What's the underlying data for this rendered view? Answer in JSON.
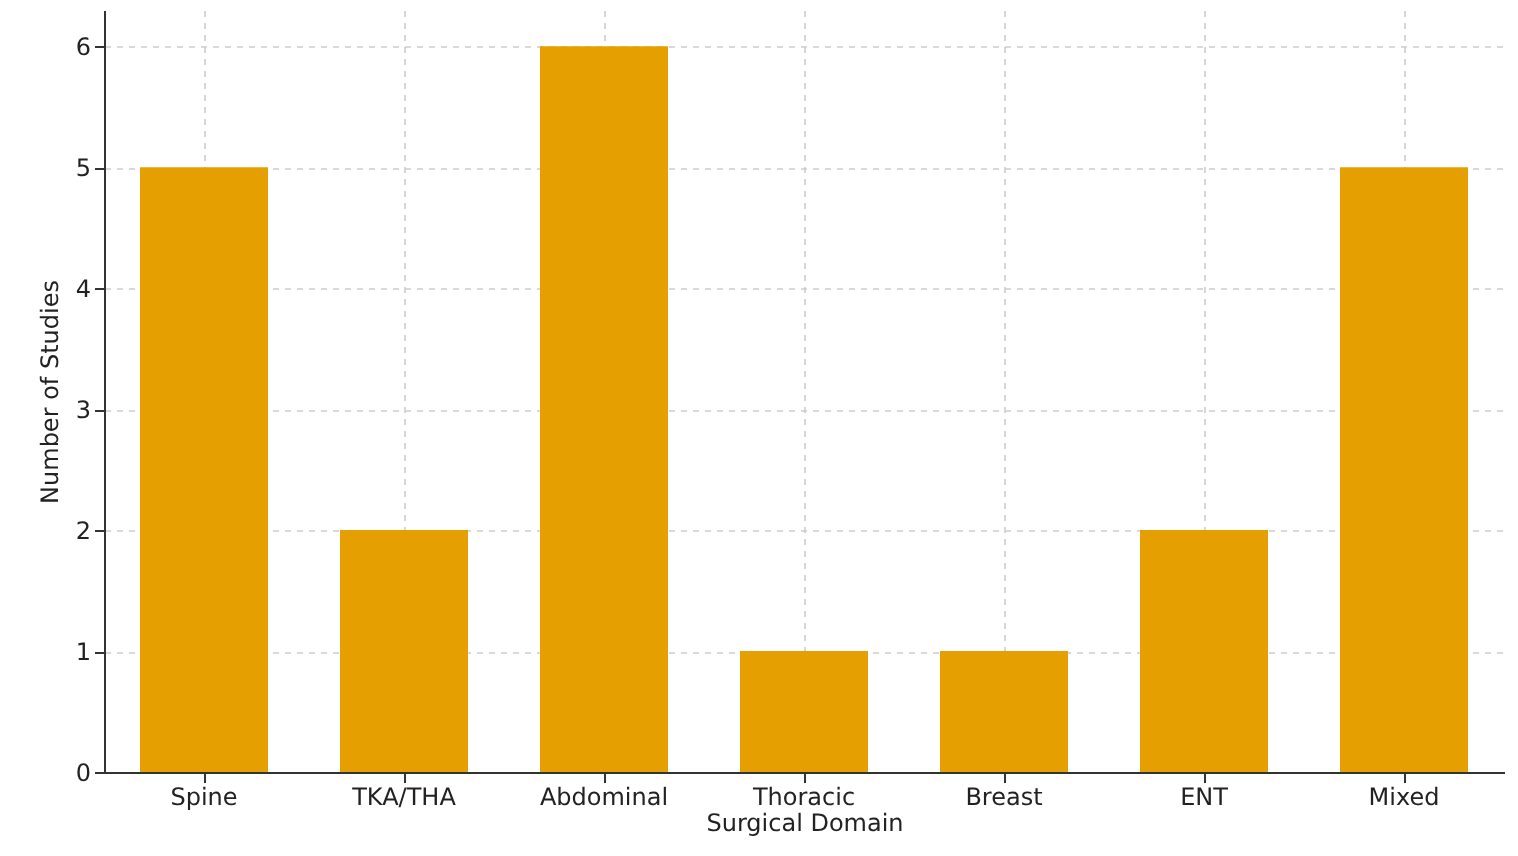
{
  "chart_data": {
    "type": "bar",
    "xlabel": "Surgical Domain",
    "ylabel": "Number of Studies",
    "categories": [
      "Spine",
      "TKA/THA",
      "Abdominal",
      "Thoracic",
      "Breast",
      "ENT",
      "Mixed"
    ],
    "values": [
      5,
      2,
      6,
      1,
      1,
      2,
      5
    ],
    "color": "#e69f00",
    "ylim": [
      0,
      6.3
    ],
    "yticks": [
      0,
      1,
      2,
      3,
      4,
      5,
      6
    ],
    "grid": true
  }
}
